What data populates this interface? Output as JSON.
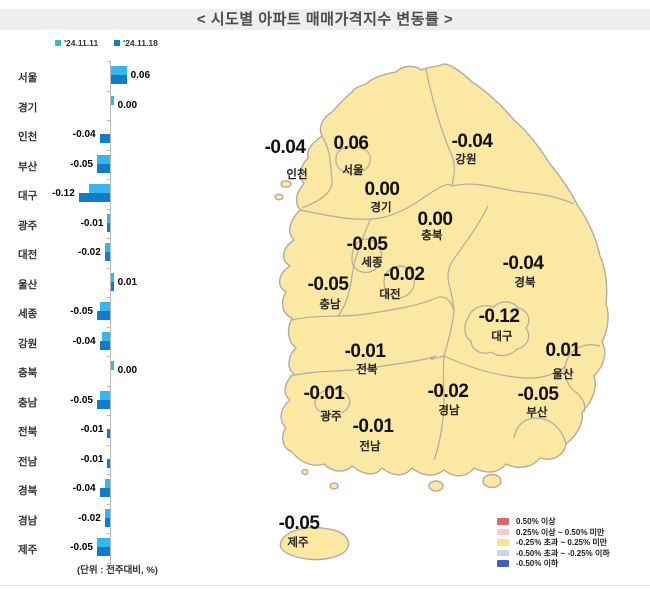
{
  "title": "< 시도별 아파트 매매가격지수 변동률 >",
  "unit_note": "(단위 : 전주대비, %)",
  "chart_data": {
    "type": "bar",
    "orientation": "horizontal",
    "title": "시도별 아파트 매매가격지수 변동률",
    "unit": "전주대비, %",
    "xlim": [
      -0.14,
      0.08
    ],
    "grid": false,
    "legend_position": "top-left",
    "categories": [
      "서울",
      "경기",
      "인천",
      "부산",
      "대구",
      "광주",
      "대전",
      "울산",
      "세종",
      "강원",
      "충북",
      "충남",
      "전북",
      "전남",
      "경북",
      "경남",
      "제주"
    ],
    "series": [
      {
        "name": "'24.11.11",
        "color": "#33b7ee",
        "values": [
          0.06,
          0.01,
          0.0,
          -0.05,
          -0.08,
          -0.01,
          -0.02,
          0.01,
          -0.04,
          -0.03,
          0.01,
          -0.04,
          0.0,
          0.0,
          -0.02,
          -0.02,
          -0.05
        ]
      },
      {
        "name": "'24.11.18",
        "color": "#0f7dcb",
        "values": [
          0.06,
          0.0,
          -0.04,
          -0.05,
          -0.12,
          -0.01,
          -0.02,
          0.01,
          -0.05,
          -0.04,
          0.0,
          -0.05,
          -0.01,
          -0.01,
          -0.04,
          -0.02,
          -0.05
        ],
        "labels": [
          "0.06",
          "0.00",
          "-0.04",
          "-0.05",
          "-0.12",
          "-0.01",
          "-0.02",
          "0.01",
          "-0.05",
          "-0.04",
          "0.00",
          "-0.05",
          "-0.01",
          "-0.01",
          "-0.04",
          "-0.02",
          "-0.05"
        ]
      }
    ]
  },
  "map": {
    "fill_color": "#fbe8a3",
    "border_color": "#b4aaa2",
    "regions": [
      {
        "name": "인천",
        "value": "-0.04"
      },
      {
        "name": "서울",
        "value": "0.06"
      },
      {
        "name": "경기",
        "value": "0.00"
      },
      {
        "name": "강원",
        "value": "-0.04"
      },
      {
        "name": "충북",
        "value": "0.00"
      },
      {
        "name": "세종",
        "value": "-0.05"
      },
      {
        "name": "대전",
        "value": "-0.02"
      },
      {
        "name": "충남",
        "value": "-0.05"
      },
      {
        "name": "경북",
        "value": "-0.04"
      },
      {
        "name": "대구",
        "value": "-0.12"
      },
      {
        "name": "울산",
        "value": "0.01"
      },
      {
        "name": "부산",
        "value": "-0.05"
      },
      {
        "name": "경남",
        "value": "-0.02"
      },
      {
        "name": "전북",
        "value": "-0.01"
      },
      {
        "name": "광주",
        "value": "-0.01"
      },
      {
        "name": "전남",
        "value": "-0.01"
      },
      {
        "name": "제주",
        "value": "-0.05"
      }
    ],
    "legend": [
      {
        "color": "#e2636a",
        "label": "0.50% 이상"
      },
      {
        "color": "#f5c9cd",
        "label": "0.25% 이상 ~ 0.50% 미만"
      },
      {
        "color": "#fcdf90",
        "label": "-0.25% 초과 ~ 0.25% 미만"
      },
      {
        "color": "#c8d5ef",
        "label": "-0.50% 초과 ~ -0.25% 이하"
      },
      {
        "color": "#3960c0",
        "label": "-0.50% 이하"
      }
    ]
  }
}
